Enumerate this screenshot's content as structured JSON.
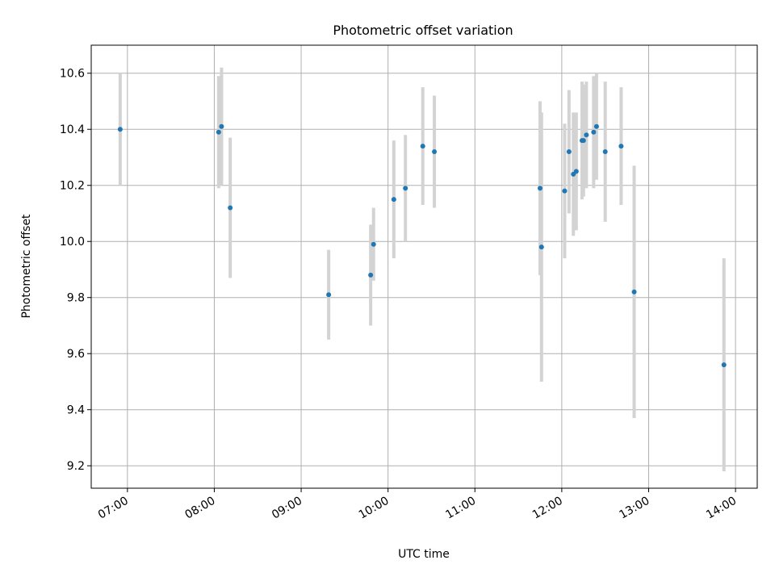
{
  "chart_data": {
    "type": "scatter",
    "title": "Photometric offset variation",
    "xlabel": "UTC time",
    "ylabel": "Photometric offset",
    "xlim": [
      "06:35",
      "14:15"
    ],
    "ylim": [
      9.12,
      10.7
    ],
    "x_ticks": [
      "07:00",
      "08:00",
      "09:00",
      "10:00",
      "11:00",
      "12:00",
      "13:00",
      "14:00"
    ],
    "y_ticks": [
      9.2,
      9.4,
      9.6,
      9.8,
      10.0,
      10.2,
      10.4,
      10.6
    ],
    "grid": true,
    "point_color": "#1f77b4",
    "errorbar_color": "#d3d3d3",
    "points": [
      {
        "x": "06:55",
        "y": 10.4,
        "yerr": 0.2
      },
      {
        "x": "08:03",
        "y": 10.39,
        "yerr": 0.2
      },
      {
        "x": "08:05",
        "y": 10.41,
        "yerr": 0.21
      },
      {
        "x": "08:11",
        "y": 10.12,
        "yerr": 0.25
      },
      {
        "x": "09:19",
        "y": 9.81,
        "yerr": 0.16
      },
      {
        "x": "09:48",
        "y": 9.88,
        "yerr": 0.18
      },
      {
        "x": "09:50",
        "y": 9.99,
        "yerr": 0.13
      },
      {
        "x": "10:04",
        "y": 10.15,
        "yerr": 0.21
      },
      {
        "x": "10:12",
        "y": 10.19,
        "yerr": 0.19
      },
      {
        "x": "10:24",
        "y": 10.34,
        "yerr": 0.21
      },
      {
        "x": "10:32",
        "y": 10.32,
        "yerr": 0.2
      },
      {
        "x": "11:45",
        "y": 10.19,
        "yerr": 0.31
      },
      {
        "x": "11:46",
        "y": 9.98,
        "yerr": 0.48
      },
      {
        "x": "12:02",
        "y": 10.18,
        "yerr": 0.24
      },
      {
        "x": "12:05",
        "y": 10.32,
        "yerr": 0.22
      },
      {
        "x": "12:08",
        "y": 10.24,
        "yerr": 0.22
      },
      {
        "x": "12:10",
        "y": 10.25,
        "yerr": 0.21
      },
      {
        "x": "12:14",
        "y": 10.36,
        "yerr": 0.21
      },
      {
        "x": "12:15",
        "y": 10.36,
        "yerr": 0.2
      },
      {
        "x": "12:17",
        "y": 10.38,
        "yerr": 0.19
      },
      {
        "x": "12:22",
        "y": 10.39,
        "yerr": 0.2
      },
      {
        "x": "12:24",
        "y": 10.41,
        "yerr": 0.19
      },
      {
        "x": "12:30",
        "y": 10.32,
        "yerr": 0.25
      },
      {
        "x": "12:41",
        "y": 10.34,
        "yerr": 0.21
      },
      {
        "x": "12:50",
        "y": 9.82,
        "yerr": 0.45
      },
      {
        "x": "13:52",
        "y": 9.56,
        "yerr": 0.38
      }
    ]
  }
}
